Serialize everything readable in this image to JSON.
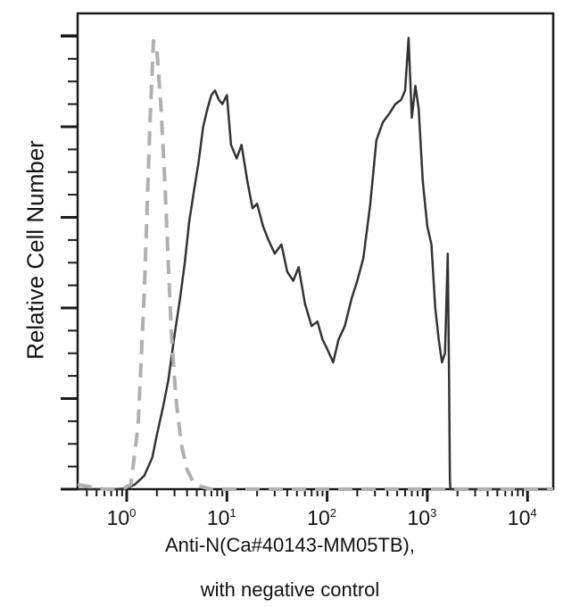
{
  "chart_data": {
    "type": "line",
    "title": "",
    "xlabel": "Anti-N(Ca#40143-MM05TB),",
    "xlabel_line2": "with negative control",
    "ylabel": "Relative Cell Number",
    "xscale": "log",
    "xlim": [
      0.3,
      20000
    ],
    "ylim": [
      0,
      5.25
    ],
    "x_tick_labels": [
      "10^0",
      "10^1",
      "10^2",
      "10^3",
      "10^4"
    ],
    "x_ticks": [
      1,
      10,
      100,
      1000,
      10000
    ],
    "y_tick_labels": [],
    "grid": false,
    "legend": null,
    "series": [
      {
        "name": "Anti-N(Ca#40143-MM05TB)",
        "style": "solid",
        "color": "#333333",
        "x": [
          0.3,
          0.8,
          1.0,
          1.2,
          1.5,
          1.8,
          2.0,
          2.3,
          2.6,
          3.0,
          3.4,
          3.8,
          4.2,
          4.7,
          5.2,
          5.8,
          6.4,
          7.0,
          7.6,
          8.3,
          9.0,
          10,
          11,
          12.5,
          14,
          16,
          18,
          20,
          23,
          26,
          30,
          35,
          40,
          46,
          52,
          60,
          70,
          80,
          90,
          100,
          115,
          130,
          150,
          175,
          200,
          230,
          270,
          310,
          360,
          420,
          480,
          550,
          600,
          650,
          700,
          760,
          820,
          900,
          1000,
          1100,
          1200,
          1300,
          1400,
          1500,
          1600,
          1650,
          1680,
          1700,
          2000,
          20000
        ],
        "y": [
          0.0,
          0.0,
          0.01,
          0.05,
          0.15,
          0.35,
          0.6,
          0.9,
          1.2,
          1.7,
          2.1,
          2.5,
          2.95,
          3.3,
          3.6,
          4.0,
          4.2,
          4.35,
          4.4,
          4.3,
          4.25,
          4.35,
          3.8,
          3.65,
          3.8,
          3.4,
          3.1,
          3.15,
          2.9,
          2.75,
          2.6,
          2.7,
          2.4,
          2.3,
          2.45,
          2.05,
          1.8,
          1.85,
          1.65,
          1.55,
          1.4,
          1.65,
          1.8,
          2.1,
          2.3,
          2.55,
          3.15,
          3.85,
          4.05,
          4.15,
          4.25,
          4.3,
          4.4,
          4.98,
          4.1,
          4.45,
          4.2,
          3.4,
          2.9,
          2.7,
          2.0,
          1.65,
          1.4,
          1.5,
          2.6,
          1.2,
          0.1,
          0.0,
          0.0,
          0.0
        ]
      },
      {
        "name": "Negative control",
        "style": "dashed",
        "color": "#b0b0b0",
        "x": [
          0.3,
          0.6,
          0.9,
          1.1,
          1.3,
          1.5,
          1.7,
          1.85,
          2.0,
          2.2,
          2.4,
          2.6,
          2.8,
          3.1,
          3.5,
          4.0,
          4.6,
          5.5,
          7,
          10,
          20,
          50,
          100,
          1000,
          20000
        ],
        "y": [
          0.05,
          0.0,
          0.0,
          0.05,
          0.7,
          2.2,
          4.0,
          4.95,
          4.85,
          4.2,
          3.4,
          2.5,
          1.7,
          1.0,
          0.5,
          0.22,
          0.08,
          0.03,
          0.0,
          0.0,
          0.0,
          0.0,
          0.0,
          0.0,
          0.0
        ]
      }
    ]
  },
  "axes": {
    "x_ticks": [
      {
        "base": "10",
        "exp": "0"
      },
      {
        "base": "10",
        "exp": "1"
      },
      {
        "base": "10",
        "exp": "2"
      },
      {
        "base": "10",
        "exp": "3"
      },
      {
        "base": "10",
        "exp": "4"
      }
    ],
    "xlabel_line1": "Anti-N(Ca#40143-MM05TB),",
    "xlabel_line2": "with negative control",
    "ylabel": "Relative Cell Number"
  }
}
